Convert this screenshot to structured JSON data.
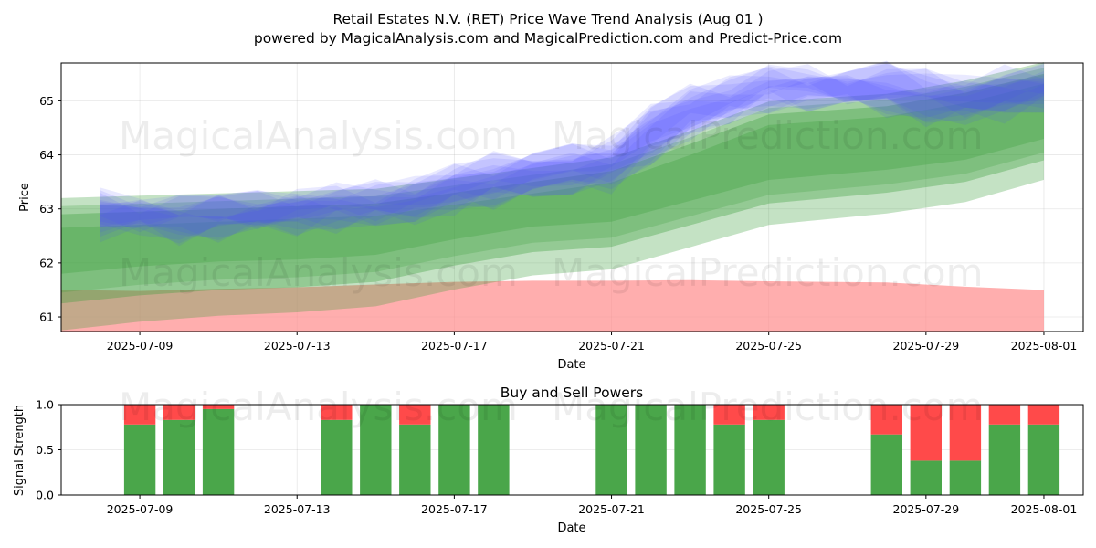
{
  "header": {
    "title": "Retail Estates N.V. (RET) Price Wave Trend Analysis (Aug 01 )",
    "subtitle": "powered by MagicalAnalysis.com and MagicalPrediction.com and Predict-Price.com"
  },
  "watermarks": [
    "MagicalAnalysis.com",
    "MagicalPrediction.com"
  ],
  "chart_data": [
    {
      "type": "area",
      "title": "",
      "xlabel": "Date",
      "ylabel": "Price",
      "ylim": [
        60.73,
        65.7
      ],
      "xlim": [
        "2025-07-07",
        "2025-08-02"
      ],
      "x_tick_labels": [
        "2025-07-09",
        "2025-07-13",
        "2025-07-17",
        "2025-07-21",
        "2025-07-25",
        "2025-07-29",
        "2025-08-01"
      ],
      "y_tick_labels": [
        "61",
        "62",
        "63",
        "64",
        "65"
      ],
      "grid": true,
      "colors": {
        "blue": "#4b4bff",
        "green": "#3c9f3c",
        "red": "#ff8c8c"
      },
      "series": [
        {
          "band": "blue",
          "x": [
            "2025-07-08",
            "2025-07-09",
            "2025-07-10",
            "2025-07-11",
            "2025-07-12",
            "2025-07-13",
            "2025-07-14",
            "2025-07-15",
            "2025-07-16",
            "2025-07-17",
            "2025-07-18",
            "2025-07-19",
            "2025-07-20",
            "2025-07-21",
            "2025-07-22",
            "2025-07-23",
            "2025-07-24",
            "2025-07-25",
            "2025-07-26",
            "2025-07-27",
            "2025-07-28",
            "2025-07-29",
            "2025-07-30",
            "2025-07-31",
            "2025-08-01"
          ],
          "upper": [
            63.2,
            63.15,
            63.1,
            63.15,
            63.2,
            63.25,
            63.3,
            63.35,
            63.45,
            63.7,
            63.85,
            63.95,
            64.05,
            64.15,
            64.8,
            65.15,
            65.3,
            65.5,
            65.5,
            65.5,
            65.55,
            65.4,
            65.35,
            65.45,
            65.5
          ],
          "lower": [
            62.6,
            62.6,
            62.55,
            62.6,
            62.65,
            62.7,
            62.75,
            62.8,
            62.85,
            63.05,
            63.2,
            63.3,
            63.4,
            63.5,
            63.95,
            64.45,
            64.7,
            64.95,
            65.0,
            64.95,
            64.9,
            64.75,
            64.7,
            64.8,
            64.95
          ]
        },
        {
          "band": "green",
          "x": [
            "2025-07-07",
            "2025-07-09",
            "2025-07-11",
            "2025-07-13",
            "2025-07-15",
            "2025-07-17",
            "2025-07-19",
            "2025-07-21",
            "2025-07-23",
            "2025-07-25",
            "2025-07-28",
            "2025-07-30",
            "2025-08-01"
          ],
          "upper": [
            62.9,
            62.95,
            63.0,
            63.05,
            63.1,
            63.3,
            63.5,
            63.7,
            64.2,
            64.75,
            64.9,
            65.15,
            65.5
          ],
          "lower": [
            61.25,
            61.4,
            61.5,
            61.55,
            61.65,
            61.95,
            62.2,
            62.3,
            62.7,
            63.1,
            63.3,
            63.5,
            63.9
          ]
        },
        {
          "band": "red",
          "x": [
            "2025-07-07",
            "2025-07-09",
            "2025-07-11",
            "2025-07-13",
            "2025-07-15",
            "2025-07-17",
            "2025-07-19",
            "2025-07-21",
            "2025-07-23",
            "2025-07-25",
            "2025-07-28",
            "2025-07-30",
            "2025-08-01"
          ],
          "upper": [
            61.5,
            61.48,
            61.52,
            61.55,
            61.6,
            61.65,
            61.67,
            61.67,
            61.68,
            61.66,
            61.64,
            61.56,
            61.5
          ],
          "lower": [
            60.73,
            60.73,
            60.73,
            60.73,
            60.73,
            60.73,
            60.73,
            60.73,
            60.73,
            60.73,
            60.73,
            60.73,
            60.73
          ]
        }
      ]
    },
    {
      "type": "bar",
      "title": "Buy and Sell Powers",
      "xlabel": "Date",
      "ylabel": "Signal Strength",
      "ylim": [
        0,
        1.0
      ],
      "xlim": [
        "2025-07-07",
        "2025-08-02"
      ],
      "x_tick_labels": [
        "2025-07-09",
        "2025-07-13",
        "2025-07-17",
        "2025-07-21",
        "2025-07-25",
        "2025-07-29",
        "2025-08-01"
      ],
      "y_tick_labels": [
        "0.0",
        "0.5",
        "1.0"
      ],
      "grid": true,
      "colors": {
        "buy": "#4aa64a",
        "sell": "#ff4a4a"
      },
      "categories": [
        "2025-07-09",
        "2025-07-10",
        "2025-07-11",
        "2025-07-14",
        "2025-07-15",
        "2025-07-16",
        "2025-07-17",
        "2025-07-18",
        "2025-07-21",
        "2025-07-22",
        "2025-07-23",
        "2025-07-24",
        "2025-07-25",
        "2025-07-28",
        "2025-07-29",
        "2025-07-30",
        "2025-07-31",
        "2025-08-01"
      ],
      "series": [
        {
          "name": "buy",
          "values": [
            0.78,
            0.83,
            0.95,
            0.83,
            1.0,
            0.78,
            1.0,
            1.0,
            1.0,
            1.0,
            1.0,
            0.78,
            0.83,
            0.67,
            0.38,
            0.38,
            0.78,
            0.78
          ]
        },
        {
          "name": "sell",
          "values": [
            0.22,
            0.17,
            0.05,
            0.17,
            0.0,
            0.22,
            0.0,
            0.0,
            0.0,
            0.0,
            0.0,
            0.22,
            0.17,
            0.33,
            0.62,
            0.62,
            0.22,
            0.22
          ]
        }
      ]
    }
  ]
}
